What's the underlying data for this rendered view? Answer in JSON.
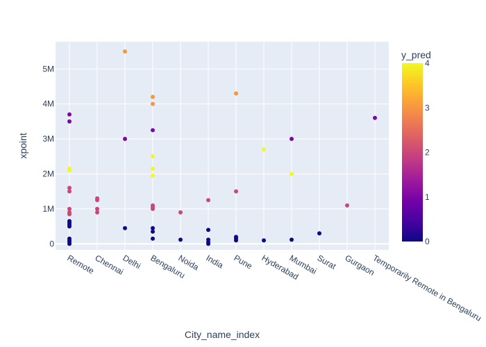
{
  "chart_data": {
    "type": "scatter",
    "xlabel": "City_name_index",
    "ylabel": "xpoint",
    "categories": [
      "Remote",
      "Chennai",
      "Delhi",
      "Bengaluru",
      "Noida",
      "India",
      "Pune",
      "Hyderabad",
      "Mumbai",
      "Surat",
      "Gurgaon",
      "Temporarily Remote in Bengaluru"
    ],
    "yticks": [
      {
        "value": 0,
        "label": "0"
      },
      {
        "value": 1000000,
        "label": "1M"
      },
      {
        "value": 2000000,
        "label": "2M"
      },
      {
        "value": 3000000,
        "label": "3M"
      },
      {
        "value": 4000000,
        "label": "4M"
      },
      {
        "value": 5000000,
        "label": "5M"
      }
    ],
    "ylim": [
      -170000,
      5780000
    ],
    "grid": true,
    "colorbar": {
      "title": "y_pred",
      "min": 0,
      "max": 4,
      "ticks": [
        {
          "value": 0,
          "label": "0"
        },
        {
          "value": 1,
          "label": "1"
        },
        {
          "value": 2,
          "label": "2"
        },
        {
          "value": 3,
          "label": "3"
        },
        {
          "value": 4,
          "label": "4"
        }
      ],
      "colorscale": [
        "#0d0887",
        "#46039f",
        "#7201a8",
        "#9c179e",
        "#bd3786",
        "#d8576b",
        "#ed7953",
        "#fb9f3a",
        "#fdca26",
        "#f0f921"
      ]
    },
    "points": [
      {
        "x": "Remote",
        "y": 3700000,
        "c": 1
      },
      {
        "x": "Remote",
        "y": 3500000,
        "c": 1
      },
      {
        "x": "Remote",
        "y": 2150000,
        "c": 4
      },
      {
        "x": "Remote",
        "y": 2100000,
        "c": 4
      },
      {
        "x": "Remote",
        "y": 1600000,
        "c": 2
      },
      {
        "x": "Remote",
        "y": 1500000,
        "c": 2
      },
      {
        "x": "Remote",
        "y": 1000000,
        "c": 2
      },
      {
        "x": "Remote",
        "y": 900000,
        "c": 2
      },
      {
        "x": "Remote",
        "y": 850000,
        "c": 2
      },
      {
        "x": "Remote",
        "y": 650000,
        "c": 0
      },
      {
        "x": "Remote",
        "y": 600000,
        "c": 0
      },
      {
        "x": "Remote",
        "y": 550000,
        "c": 0
      },
      {
        "x": "Remote",
        "y": 500000,
        "c": 0
      },
      {
        "x": "Remote",
        "y": 150000,
        "c": 0
      },
      {
        "x": "Remote",
        "y": 100000,
        "c": 0
      },
      {
        "x": "Remote",
        "y": 50000,
        "c": 0
      },
      {
        "x": "Remote",
        "y": 0,
        "c": 0
      },
      {
        "x": "Chennai",
        "y": 1300000,
        "c": 2
      },
      {
        "x": "Chennai",
        "y": 1250000,
        "c": 2
      },
      {
        "x": "Chennai",
        "y": 1000000,
        "c": 2
      },
      {
        "x": "Chennai",
        "y": 900000,
        "c": 2
      },
      {
        "x": "Delhi",
        "y": 5500000,
        "c": 3
      },
      {
        "x": "Delhi",
        "y": 3000000,
        "c": 1
      },
      {
        "x": "Delhi",
        "y": 450000,
        "c": 0
      },
      {
        "x": "Bengaluru",
        "y": 4200000,
        "c": 3
      },
      {
        "x": "Bengaluru",
        "y": 4000000,
        "c": 3
      },
      {
        "x": "Bengaluru",
        "y": 3250000,
        "c": 1
      },
      {
        "x": "Bengaluru",
        "y": 2500000,
        "c": 4
      },
      {
        "x": "Bengaluru",
        "y": 2150000,
        "c": 4
      },
      {
        "x": "Bengaluru",
        "y": 1950000,
        "c": 4
      },
      {
        "x": "Bengaluru",
        "y": 1100000,
        "c": 2
      },
      {
        "x": "Bengaluru",
        "y": 1050000,
        "c": 2
      },
      {
        "x": "Bengaluru",
        "y": 1000000,
        "c": 2
      },
      {
        "x": "Bengaluru",
        "y": 450000,
        "c": 0
      },
      {
        "x": "Bengaluru",
        "y": 350000,
        "c": 0
      },
      {
        "x": "Bengaluru",
        "y": 150000,
        "c": 0
      },
      {
        "x": "Noida",
        "y": 900000,
        "c": 2
      },
      {
        "x": "Noida",
        "y": 120000,
        "c": 0
      },
      {
        "x": "India",
        "y": 1250000,
        "c": 2
      },
      {
        "x": "India",
        "y": 400000,
        "c": 0
      },
      {
        "x": "India",
        "y": 120000,
        "c": 0
      },
      {
        "x": "India",
        "y": 50000,
        "c": 0
      },
      {
        "x": "India",
        "y": 0,
        "c": 0
      },
      {
        "x": "Pune",
        "y": 4300000,
        "c": 3
      },
      {
        "x": "Pune",
        "y": 1500000,
        "c": 2
      },
      {
        "x": "Pune",
        "y": 200000,
        "c": 0
      },
      {
        "x": "Pune",
        "y": 150000,
        "c": 0
      },
      {
        "x": "Pune",
        "y": 100000,
        "c": 0
      },
      {
        "x": "Hyderabad",
        "y": 2700000,
        "c": 4
      },
      {
        "x": "Hyderabad",
        "y": 100000,
        "c": 0
      },
      {
        "x": "Mumbai",
        "y": 3000000,
        "c": 1
      },
      {
        "x": "Mumbai",
        "y": 2000000,
        "c": 4
      },
      {
        "x": "Mumbai",
        "y": 120000,
        "c": 0
      },
      {
        "x": "Surat",
        "y": 300000,
        "c": 0
      },
      {
        "x": "Gurgaon",
        "y": 1100000,
        "c": 2
      },
      {
        "x": "Temporarily Remote in Bengaluru",
        "y": 3600000,
        "c": 1
      }
    ]
  }
}
